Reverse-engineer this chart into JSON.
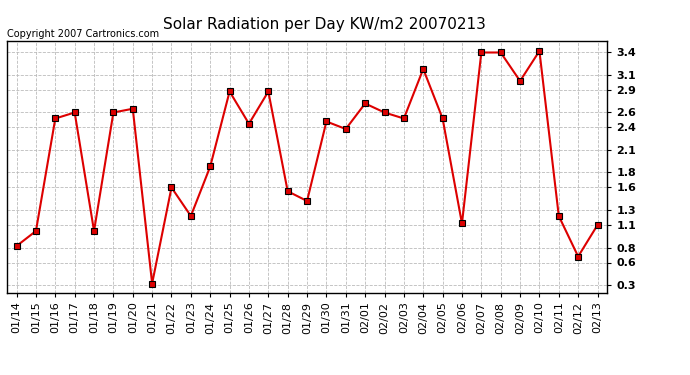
{
  "title": "Solar Radiation per Day KW/m2 20070213",
  "copyright_text": "Copyright 2007 Cartronics.com",
  "dates": [
    "01/14",
    "01/15",
    "01/16",
    "01/17",
    "01/18",
    "01/19",
    "01/20",
    "01/21",
    "01/22",
    "01/23",
    "01/24",
    "01/25",
    "01/26",
    "01/27",
    "01/28",
    "01/29",
    "01/30",
    "01/31",
    "02/01",
    "02/02",
    "02/03",
    "02/04",
    "02/05",
    "02/06",
    "02/07",
    "02/08",
    "02/09",
    "02/10",
    "02/11",
    "02/12",
    "02/13"
  ],
  "values": [
    0.82,
    1.02,
    2.52,
    2.6,
    1.02,
    2.6,
    2.65,
    0.32,
    1.6,
    1.22,
    1.88,
    2.88,
    2.45,
    2.88,
    1.55,
    1.42,
    2.48,
    2.38,
    2.72,
    2.6,
    2.52,
    3.18,
    2.52,
    1.12,
    3.4,
    3.4,
    3.02,
    3.42,
    1.22,
    0.68,
    1.1
  ],
  "line_color": "#dd0000",
  "marker": "s",
  "marker_size": 4,
  "marker_color": "#000000",
  "ylim": [
    0.2,
    3.55
  ],
  "yticks": [
    0.3,
    0.6,
    0.8,
    1.1,
    1.3,
    1.6,
    1.8,
    2.1,
    2.4,
    2.6,
    2.9,
    3.1,
    3.4
  ],
  "background_color": "#ffffff",
  "grid_color": "#bbbbbb",
  "title_fontsize": 11,
  "tick_fontsize": 8,
  "copyright_fontsize": 7
}
